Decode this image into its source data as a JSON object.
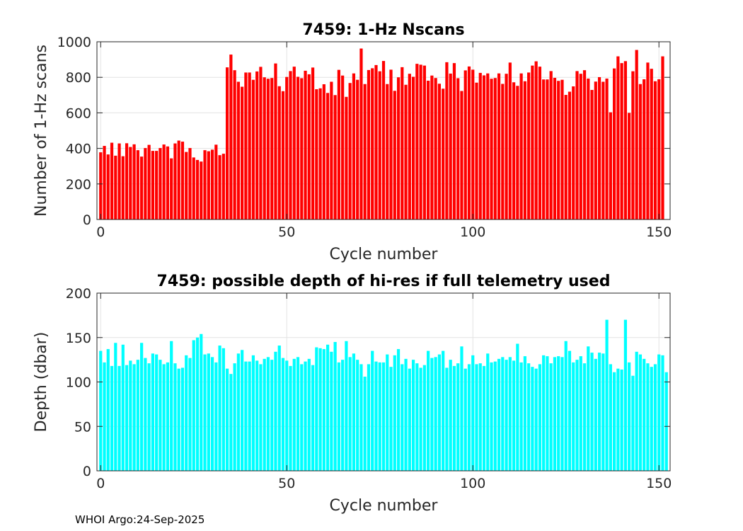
{
  "footer": "WHOI Argo:24-Sep-2025",
  "chart_data": [
    {
      "type": "bar",
      "title": "7459: 1-Hz Nscans",
      "xlabel": "Cycle number",
      "ylabel": "Number of 1-Hz scans",
      "xlim": [
        -1,
        153
      ],
      "ylim": [
        0,
        1000
      ],
      "xticks": [
        0,
        50,
        100,
        150
      ],
      "yticks": [
        0,
        200,
        400,
        600,
        800,
        1000
      ],
      "grid": true,
      "color": "#ff0000",
      "x_start": 0,
      "values": [
        378,
        414,
        366,
        432,
        359,
        428,
        356,
        429,
        408,
        423,
        390,
        354,
        402,
        420,
        386,
        386,
        402,
        422,
        411,
        344,
        428,
        444,
        438,
        380,
        402,
        349,
        335,
        326,
        390,
        384,
        393,
        421,
        362,
        370,
        856,
        928,
        840,
        775,
        747,
        827,
        827,
        786,
        833,
        859,
        800,
        792,
        796,
        878,
        750,
        722,
        802,
        835,
        860,
        803,
        795,
        837,
        817,
        855,
        733,
        738,
        761,
        712,
        775,
        700,
        842,
        810,
        690,
        768,
        822,
        786,
        962,
        762,
        841,
        851,
        869,
        834,
        892,
        762,
        843,
        724,
        800,
        857,
        758,
        820,
        803,
        876,
        871,
        866,
        781,
        810,
        796,
        764,
        736,
        885,
        821,
        880,
        795,
        723,
        839,
        861,
        843,
        770,
        825,
        811,
        822,
        792,
        796,
        822,
        763,
        820,
        883,
        772,
        752,
        822,
        778,
        827,
        866,
        890,
        860,
        788,
        788,
        835,
        797,
        780,
        786,
        701,
        719,
        749,
        835,
        820,
        840,
        793,
        729,
        776,
        801,
        775,
        793,
        603,
        850,
        918,
        880,
        891,
        600,
        834,
        954,
        762,
        789,
        883,
        848,
        778,
        789,
        918
      ]
    },
    {
      "type": "bar",
      "title": "7459: possible depth of hi-res if full telemetry used",
      "xlabel": "Cycle number",
      "ylabel": "Depth (dbar)",
      "xlim": [
        -1,
        153
      ],
      "ylim": [
        0,
        200
      ],
      "xticks": [
        0,
        50,
        100,
        150
      ],
      "yticks": [
        0,
        50,
        100,
        150,
        200
      ],
      "grid": true,
      "color": "#00ffff",
      "x_start": 0,
      "values": [
        135,
        122,
        137,
        118,
        144,
        118,
        142,
        119,
        124,
        120,
        125,
        144,
        127,
        121,
        132,
        131,
        125,
        120,
        122,
        146,
        121,
        115,
        116,
        130,
        127,
        147,
        150,
        154,
        131,
        132,
        128,
        122,
        141,
        138,
        115,
        109,
        121,
        132,
        136,
        123,
        123,
        130,
        124,
        120,
        126,
        128,
        125,
        134,
        141,
        127,
        124,
        118,
        126,
        128,
        120,
        123,
        126,
        119,
        139,
        138,
        137,
        142,
        134,
        145,
        122,
        125,
        146,
        128,
        132,
        125,
        120,
        106,
        120,
        135,
        123,
        122,
        122,
        131,
        117,
        130,
        137,
        120,
        126,
        115,
        125,
        121,
        116,
        119,
        135,
        127,
        128,
        131,
        135,
        116,
        125,
        118,
        121,
        140,
        115,
        120,
        130,
        120,
        121,
        118,
        132,
        122,
        123,
        126,
        128,
        125,
        128,
        124,
        143,
        122,
        129,
        121,
        117,
        115,
        120,
        130,
        129,
        121,
        128,
        129,
        128,
        146,
        135,
        122,
        125,
        129,
        121,
        140,
        133,
        126,
        133,
        132,
        170,
        120,
        111,
        115,
        114,
        170,
        122,
        107,
        134,
        131,
        126,
        121,
        117,
        120,
        131,
        130,
        111
      ]
    }
  ]
}
